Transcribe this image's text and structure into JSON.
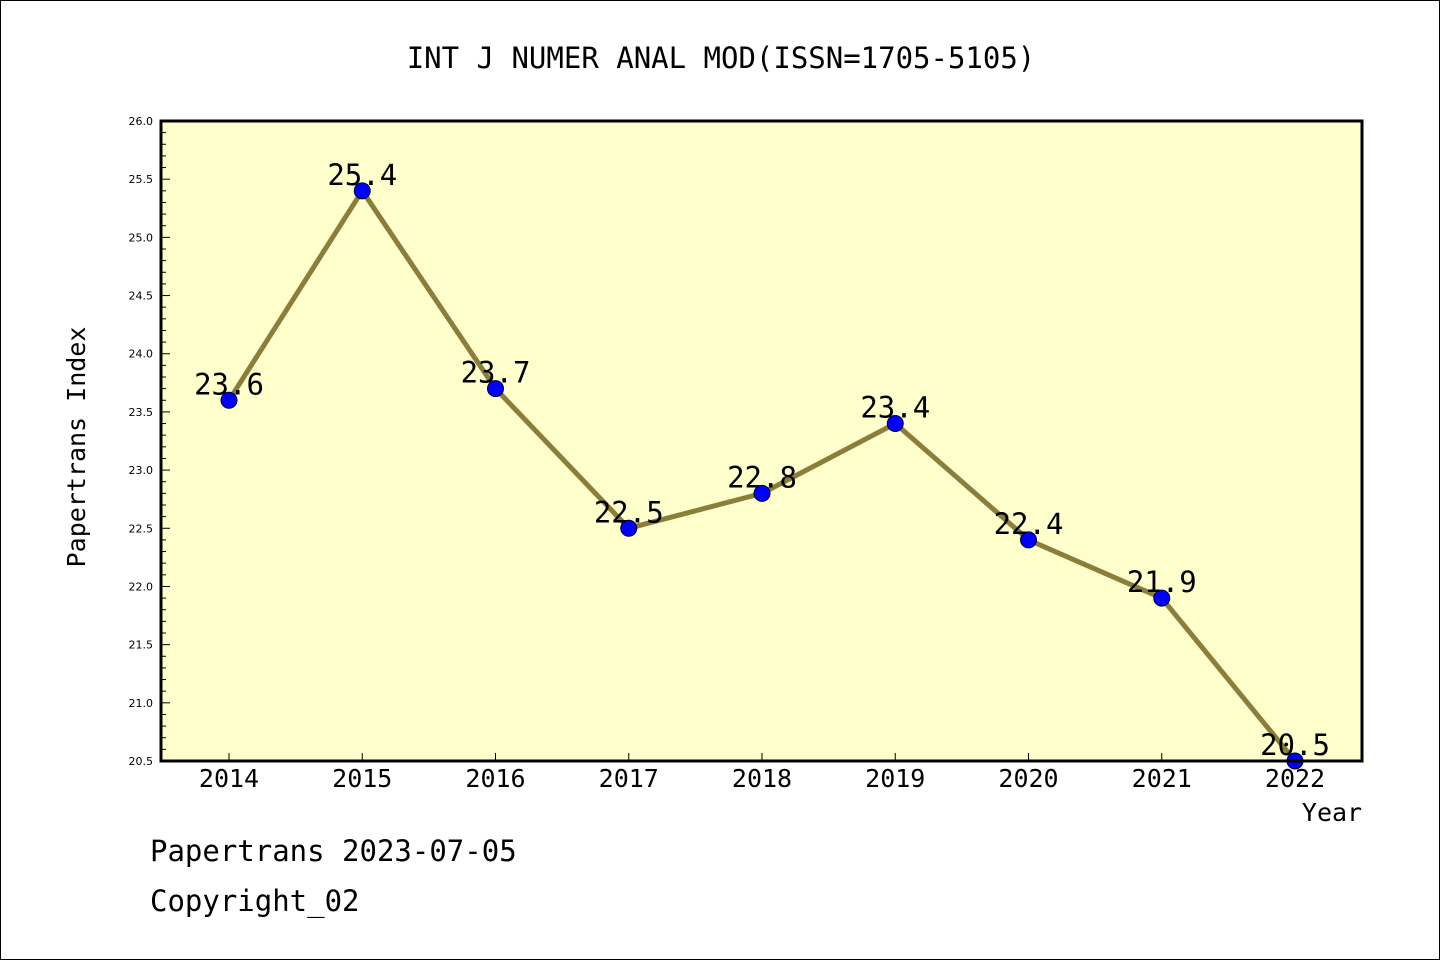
{
  "chart_data": {
    "type": "line",
    "title": "INT J NUMER ANAL MOD(ISSN=1705-5105)",
    "xlabel": "Year",
    "ylabel": "Papertrans Index",
    "categories": [
      "2014",
      "2015",
      "2016",
      "2017",
      "2018",
      "2019",
      "2020",
      "2021",
      "2022"
    ],
    "series": [
      {
        "values": [
          23.6,
          25.4,
          23.7,
          22.5,
          22.8,
          23.4,
          22.4,
          21.9,
          20.5
        ],
        "labels": [
          "23.6",
          "25.4",
          "23.7",
          "22.5",
          "22.8",
          "23.4",
          "22.4",
          "21.9",
          "20.5"
        ]
      }
    ],
    "ylim": [
      20.5,
      26.0
    ],
    "yticks": [
      "20.5",
      "21.0",
      "21.5",
      "22.0",
      "22.5",
      "23.0",
      "23.5",
      "24.0",
      "24.5",
      "25.0",
      "25.5",
      "26.0"
    ],
    "grid": false,
    "colors": {
      "plot_background": "#ffffcc",
      "line": "#8b7d3a",
      "marker": "#0000ff"
    }
  },
  "footer": {
    "line1": "Papertrans 2023-07-05",
    "line2": "Copyright_02"
  }
}
